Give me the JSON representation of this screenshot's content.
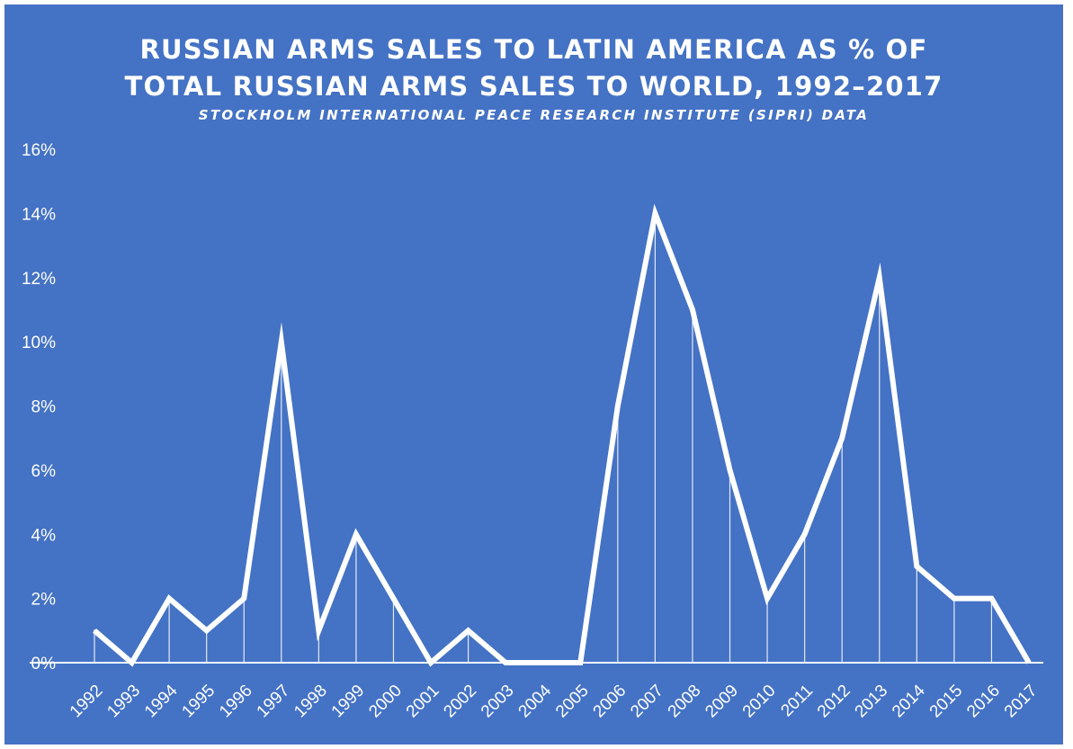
{
  "chart_data": {
    "type": "line",
    "title_lines": [
      "RUSSIAN ARMS SALES TO LATIN AMERICA AS % OF",
      "TOTAL RUSSIAN ARMS SALES TO WORLD, 1992–2017"
    ],
    "subtitle": "STOCKHOLM INTERNATIONAL PEACE RESEARCH INSTITUTE (SIPRI) DATA",
    "xlabel": "",
    "ylabel": "",
    "categories": [
      "1992",
      "1993",
      "1994",
      "1995",
      "1996",
      "1997",
      "1998",
      "1999",
      "2000",
      "2001",
      "2002",
      "2003",
      "2004",
      "2005",
      "2006",
      "2007",
      "2008",
      "2009",
      "2010",
      "2011",
      "2012",
      "2013",
      "2014",
      "2015",
      "2016",
      "2017"
    ],
    "series": [
      {
        "values": [
          1,
          0,
          2,
          1,
          2,
          10,
          1,
          4,
          2,
          0,
          1,
          0,
          0,
          0,
          8,
          14,
          11,
          6,
          2,
          4,
          7,
          12,
          3,
          2,
          2,
          0
        ]
      }
    ],
    "ylim": [
      0,
      16
    ],
    "yticks": [
      "0%",
      "2%",
      "4%",
      "6%",
      "8%",
      "10%",
      "12%",
      "14%",
      "16%"
    ],
    "grid": false,
    "drop_lines": true,
    "legend": "none",
    "colors": {
      "background": "#4472c4",
      "line": "#ffffff",
      "text": "#ffffff"
    }
  }
}
